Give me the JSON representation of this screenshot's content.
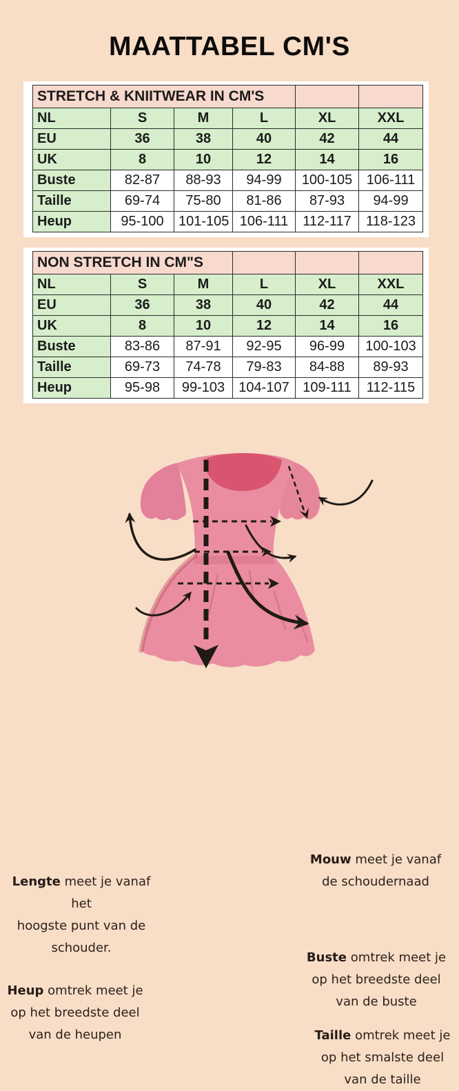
{
  "page_title": "MAATTABEL CM'S",
  "colors": {
    "background": "#f8ddc7",
    "sheet": "#ffffff",
    "table_title_pink": "#f8d9cd",
    "cell_green": "#d6eecb",
    "border": "#2b2b2b",
    "dress_pink": "#ea8da0",
    "dress_sleeve_pink": "#e68699",
    "dress_neck_rose": "#d9556f",
    "arrow_black": "#201a14"
  },
  "tables": [
    {
      "title": "STRETCH & KNIITWEAR IN CM'S",
      "title_colspan": 4,
      "size_rows": [
        {
          "label": "NL",
          "values": [
            "S",
            "M",
            "L",
            "XL",
            "XXL"
          ]
        },
        {
          "label": "EU",
          "values": [
            "36",
            "38",
            "40",
            "42",
            "44"
          ]
        },
        {
          "label": "UK",
          "values": [
            "8",
            "10",
            "12",
            "14",
            "16"
          ]
        }
      ],
      "measure_rows": [
        {
          "label": "Buste",
          "values": [
            "82-87",
            "88-93",
            "94-99",
            "100-105",
            "106-111"
          ]
        },
        {
          "label": "Taille",
          "values": [
            "69-74",
            "75-80",
            "81-86",
            "87-93",
            "94-99"
          ]
        },
        {
          "label": "Heup",
          "values": [
            "95-100",
            "101-105",
            "106-111",
            "112-117",
            "118-123"
          ]
        }
      ]
    },
    {
      "title": "NON STRETCH IN CM\"S",
      "title_colspan": 3,
      "size_rows": [
        {
          "label": "NL",
          "values": [
            "S",
            "M",
            "L",
            "XL",
            "XXL"
          ]
        },
        {
          "label": "EU",
          "values": [
            "36",
            "38",
            "40",
            "42",
            "44"
          ]
        },
        {
          "label": "UK",
          "values": [
            "8",
            "10",
            "12",
            "14",
            "16"
          ]
        }
      ],
      "measure_rows": [
        {
          "label": "Buste",
          "values": [
            "83-86",
            "87-91",
            "92-95",
            "96-99",
            "100-103"
          ]
        },
        {
          "label": "Taille",
          "values": [
            "69-73",
            "74-78",
            "79-83",
            "84-88",
            "89-93"
          ]
        },
        {
          "label": "Heup",
          "values": [
            "95-98",
            "99-103",
            "104-107",
            "109-111",
            "112-115"
          ]
        }
      ]
    }
  ],
  "diagram": {
    "illustration": "dress-with-dashed-measurement-lines",
    "notes": [
      {
        "keyword": "Lengte",
        "line1": " meet je vanaf het",
        "line2": "hoogste punt van de",
        "line3": "schouder."
      },
      {
        "keyword": "Mouw",
        "line1": " meet je vanaf",
        "line2": "de schoudernaad"
      },
      {
        "keyword": "Buste",
        "line1": " omtrek meet je",
        "line2": "op het breedste deel",
        "line3": "van de buste"
      },
      {
        "keyword": "Heup",
        "line1": " omtrek meet je",
        "line2": "op het breedste deel",
        "line3": "van de heupen"
      },
      {
        "keyword": "Taille",
        "line1": " omtrek meet je",
        "line2": "op het smalste deel",
        "line3": "van de taille"
      }
    ]
  }
}
